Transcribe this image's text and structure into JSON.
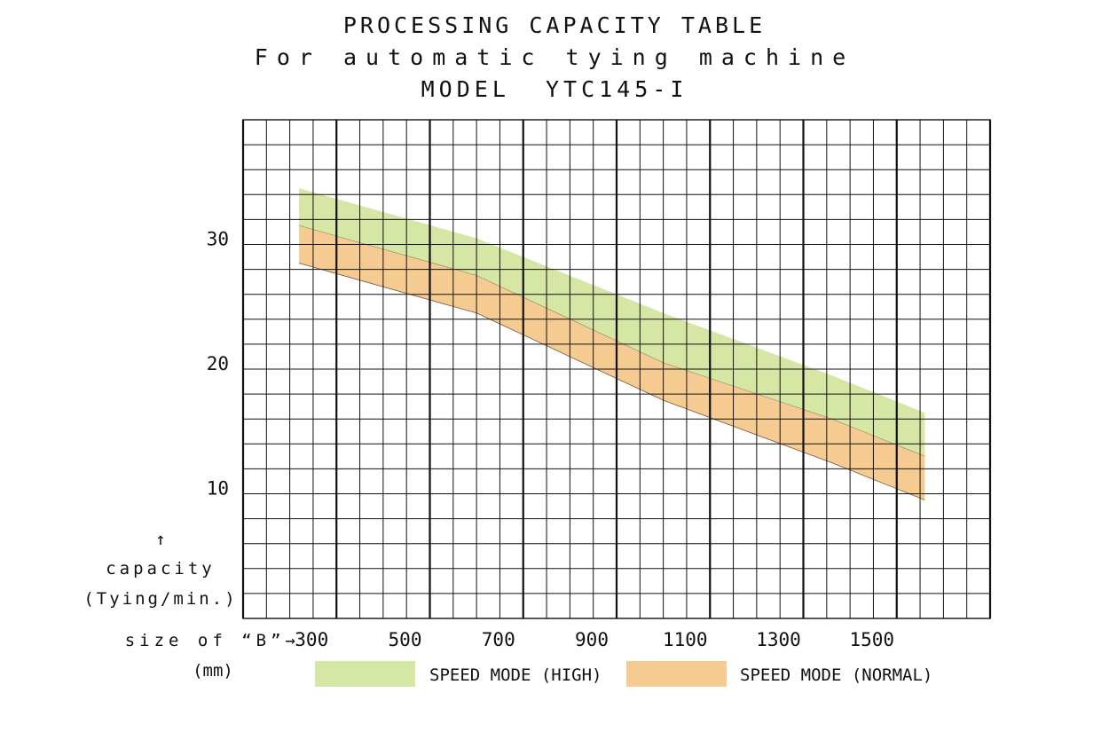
{
  "title_lines": [
    "PROCESSING CAPACITY TABLE",
    "For automatic tying machine",
    "MODEL  YTC145-I"
  ],
  "chart_data": {
    "type": "area",
    "x_tick_labels": [
      "300",
      "500",
      "700",
      "900",
      "1100",
      "1300",
      "1500"
    ],
    "x_tick_values": [
      300,
      500,
      700,
      900,
      1100,
      1300,
      1500
    ],
    "y_tick_labels": [
      "10",
      "20",
      "30"
    ],
    "y_tick_values": [
      10,
      20,
      30
    ],
    "xlim": [
      100,
      1700
    ],
    "ylim": [
      -0.5,
      39.5
    ],
    "grid": true,
    "x_minor_step": 50,
    "x_major_step": 200,
    "y_minor_step": 2,
    "y_major_step": 10,
    "ylabel_arrow": "↑",
    "ylabel_lines": [
      "capacity",
      "(Tying/min.)"
    ],
    "xlabel": "size of “B”→",
    "xlabel_unit": "(mm)",
    "legend_position": "bottom",
    "series": [
      {
        "name": "SPEED MODE (HIGH)",
        "color": "#d6e6a5",
        "x": [
          220,
          600,
          1000,
          1360,
          1560
        ],
        "upper": [
          34,
          30,
          24,
          19,
          16
        ],
        "lower": [
          31,
          27,
          20,
          15.5,
          12.5
        ]
      },
      {
        "name": "SPEED MODE (NORMAL)",
        "color": "#f5cb92",
        "x": [
          220,
          600,
          1000,
          1360,
          1560
        ],
        "upper": [
          31,
          27,
          20,
          15.5,
          12.5
        ],
        "lower": [
          28,
          24,
          17,
          12,
          9
        ]
      }
    ]
  }
}
